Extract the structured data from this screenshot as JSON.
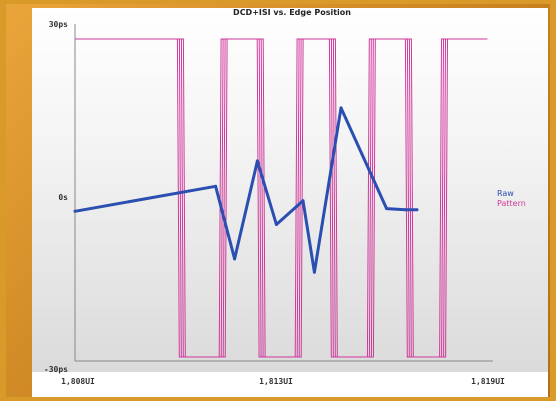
{
  "chart_data": {
    "type": "line",
    "title": "DCD+ISI vs. Edge Position",
    "xlabel": "",
    "ylabel": "",
    "x_ticks": [
      "1,808UI",
      "1,813UI",
      "1,819UI"
    ],
    "y_ticks": [
      "30ps",
      "0s",
      "-30ps"
    ],
    "xlim": [
      1808,
      1819
    ],
    "ylim": [
      -30,
      30
    ],
    "grid": false,
    "legend_position": "right",
    "series": [
      {
        "name": "Raw",
        "color": "#2b4fb0",
        "x": [
          1808.0,
          1811.7,
          1812.2,
          1812.8,
          1813.3,
          1814.0,
          1814.3,
          1815.0,
          1816.2,
          1816.7,
          1817.0
        ],
        "y": [
          -2.5,
          2.2,
          -11.5,
          7.0,
          -5.0,
          -0.5,
          -14.0,
          17.0,
          -2.0,
          -2.2,
          -2.2
        ]
      },
      {
        "name": "Pattern",
        "color": "#d0389a",
        "x": [
          1808.0,
          1810.8,
          1810.85,
          1811.9,
          1811.95,
          1812.9,
          1812.95,
          1813.9,
          1813.95,
          1814.8,
          1814.85,
          1815.8,
          1815.85,
          1816.8,
          1816.85,
          1817.7,
          1817.75,
          1818.8
        ],
        "y": [
          30,
          30,
          -30,
          -30,
          30,
          30,
          -30,
          -30,
          30,
          30,
          -30,
          -30,
          30,
          30,
          -30,
          -30,
          30,
          30
        ]
      }
    ]
  }
}
